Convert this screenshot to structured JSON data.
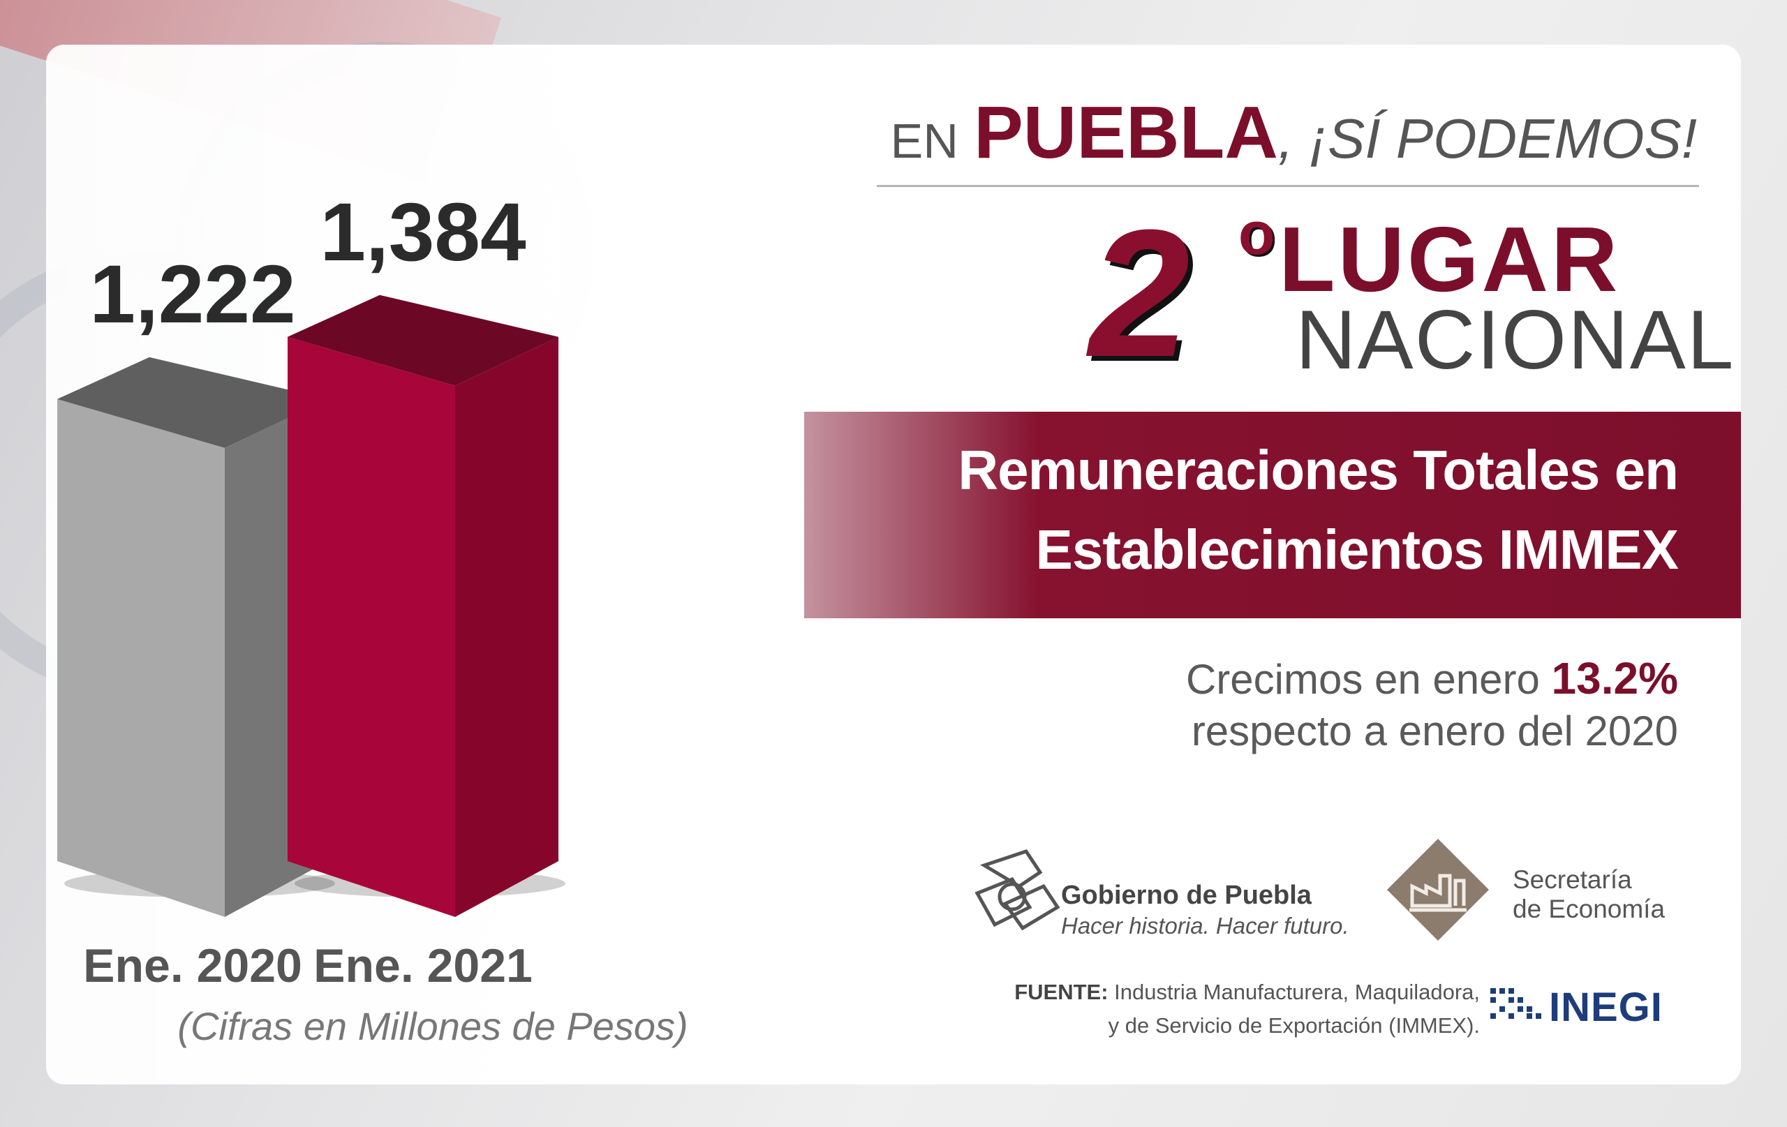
{
  "header": {
    "prefix": "EN",
    "place": "PUEBLA",
    "suffix": ", ¡SÍ PODEMOS!"
  },
  "rank": {
    "number": "2",
    "ordinal": "o",
    "line1": "LUGAR",
    "line2": "NACIONAL"
  },
  "banner": {
    "line1": "Remuneraciones Totales en",
    "line2": "Establecimientos IMMEX"
  },
  "growth": {
    "text1": "Crecimos en enero",
    "pct": "13.2%",
    "text2": "respecto a enero del 2020"
  },
  "logos": {
    "gobierno_title": "Gobierno de Puebla",
    "gobierno_motto": "Hacer historia. Hacer futuro.",
    "secretaria_line1": "Secretaría",
    "secretaria_line2": "de Economía",
    "inegi": "INEGI"
  },
  "source": {
    "label": "FUENTE:",
    "line1": "Industria Manufacturera, Maquiladora,",
    "line2": "y de Servicio de Exportación (IMMEX)."
  },
  "colors": {
    "accent": "#7b0f2b",
    "bar_2021_front": "#a8053a",
    "bar_2020_front": "#a6a6a6",
    "text_dark": "#2b2b2b"
  },
  "chart_data": {
    "type": "bar",
    "categories": [
      "Ene. 2020",
      "Ene. 2021"
    ],
    "values": [
      1222,
      1384
    ],
    "value_labels": [
      "1,222",
      "1,384"
    ],
    "units_note": "(Cifras en Millones de Pesos)",
    "ylabel": "",
    "xlabel": "",
    "grid": false,
    "legend": "none"
  }
}
